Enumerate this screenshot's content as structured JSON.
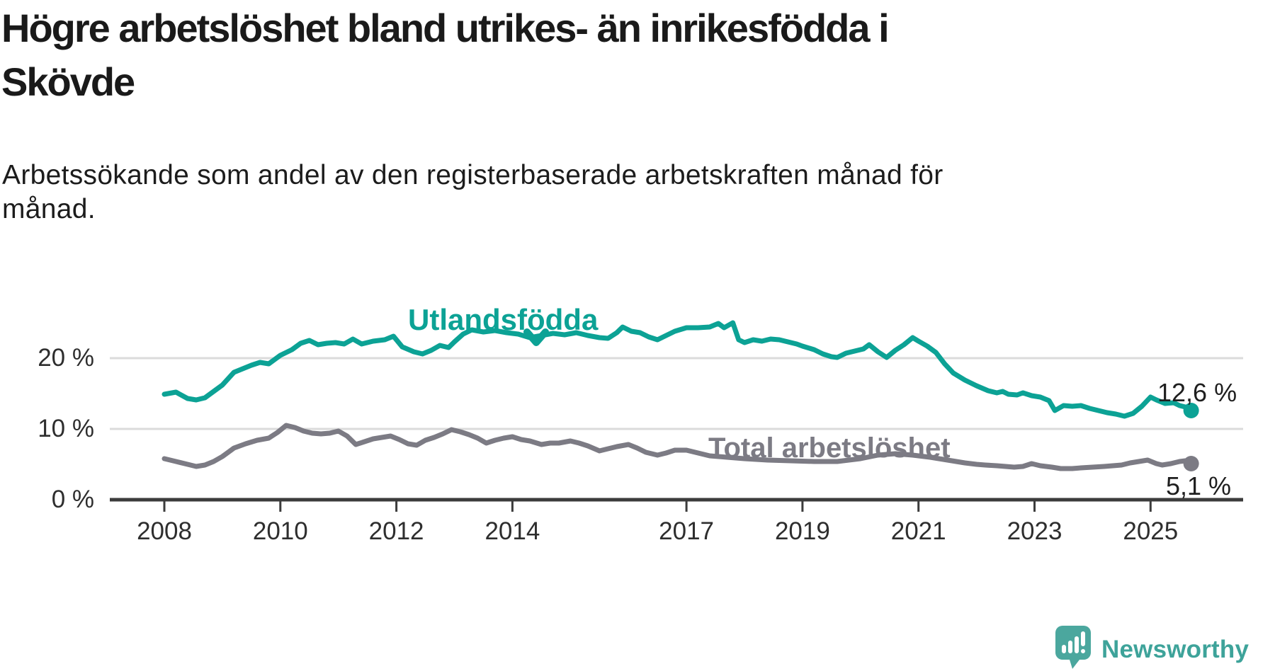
{
  "header": {
    "title_lines": [
      "Högre arbetslöshet bland utrikes- än inrikesfödda i",
      "Skövde"
    ],
    "subtitle_lines": [
      "Arbetssökande som andel av den registerbaserade arbetskraften månad för",
      "månad."
    ]
  },
  "chart_data": {
    "type": "line",
    "unit": "%",
    "grid": "horizontal-only",
    "x_axis": {
      "ticks": [
        "2008",
        "2010",
        "2012",
        "2014",
        "2017",
        "2019",
        "2021",
        "2023",
        "2025"
      ],
      "tick_years": [
        2008,
        2010,
        2012,
        2014,
        2017,
        2019,
        2021,
        2023,
        2025
      ],
      "range_years": [
        2008.0,
        2025.75
      ]
    },
    "y_axis": {
      "ticks": [
        {
          "value": 0,
          "label": "0 %"
        },
        {
          "value": 10,
          "label": "10 %"
        },
        {
          "value": 20,
          "label": "20 %"
        }
      ],
      "ylim": [
        0,
        28
      ]
    },
    "series": [
      {
        "name": "Utlandsfödda",
        "color": "#0ca295",
        "end_label": "12,6 %",
        "end_value": 12.6,
        "points": [
          [
            2008.0,
            14.9
          ],
          [
            2008.2,
            15.2
          ],
          [
            2008.4,
            14.3
          ],
          [
            2008.55,
            14.1
          ],
          [
            2008.7,
            14.4
          ],
          [
            2008.85,
            15.3
          ],
          [
            2009.0,
            16.2
          ],
          [
            2009.2,
            18.0
          ],
          [
            2009.35,
            18.5
          ],
          [
            2009.5,
            19.0
          ],
          [
            2009.65,
            19.4
          ],
          [
            2009.8,
            19.2
          ],
          [
            2010.0,
            20.4
          ],
          [
            2010.2,
            21.2
          ],
          [
            2010.35,
            22.1
          ],
          [
            2010.5,
            22.5
          ],
          [
            2010.65,
            21.9
          ],
          [
            2010.8,
            22.1
          ],
          [
            2010.95,
            22.2
          ],
          [
            2011.1,
            22.0
          ],
          [
            2011.25,
            22.7
          ],
          [
            2011.4,
            22.0
          ],
          [
            2011.6,
            22.4
          ],
          [
            2011.8,
            22.6
          ],
          [
            2011.95,
            23.1
          ],
          [
            2012.1,
            21.6
          ],
          [
            2012.3,
            20.9
          ],
          [
            2012.45,
            20.6
          ],
          [
            2012.6,
            21.1
          ],
          [
            2012.75,
            21.8
          ],
          [
            2012.9,
            21.5
          ],
          [
            2013.0,
            22.3
          ],
          [
            2013.15,
            23.4
          ],
          [
            2013.3,
            24.0
          ],
          [
            2013.5,
            23.7
          ],
          [
            2013.7,
            23.9
          ],
          [
            2013.9,
            23.6
          ],
          [
            2014.1,
            23.4
          ],
          [
            2014.3,
            22.9
          ],
          [
            2014.5,
            23.2
          ],
          [
            2014.7,
            23.5
          ],
          [
            2014.9,
            23.3
          ],
          [
            2015.1,
            23.6
          ],
          [
            2015.3,
            23.2
          ],
          [
            2015.5,
            22.9
          ],
          [
            2015.65,
            22.8
          ],
          [
            2015.8,
            23.6
          ],
          [
            2015.9,
            24.4
          ],
          [
            2016.05,
            23.8
          ],
          [
            2016.2,
            23.6
          ],
          [
            2016.35,
            23.0
          ],
          [
            2016.5,
            22.6
          ],
          [
            2016.65,
            23.2
          ],
          [
            2016.8,
            23.8
          ],
          [
            2017.0,
            24.3
          ],
          [
            2017.2,
            24.3
          ],
          [
            2017.4,
            24.4
          ],
          [
            2017.55,
            24.9
          ],
          [
            2017.65,
            24.3
          ],
          [
            2017.8,
            25.0
          ],
          [
            2017.9,
            22.6
          ],
          [
            2018.0,
            22.2
          ],
          [
            2018.15,
            22.6
          ],
          [
            2018.3,
            22.4
          ],
          [
            2018.45,
            22.7
          ],
          [
            2018.6,
            22.6
          ],
          [
            2018.75,
            22.3
          ],
          [
            2018.9,
            22.0
          ],
          [
            2019.0,
            21.7
          ],
          [
            2019.2,
            21.2
          ],
          [
            2019.35,
            20.6
          ],
          [
            2019.5,
            20.2
          ],
          [
            2019.6,
            20.1
          ],
          [
            2019.75,
            20.7
          ],
          [
            2019.9,
            21.0
          ],
          [
            2020.05,
            21.3
          ],
          [
            2020.15,
            21.9
          ],
          [
            2020.3,
            20.9
          ],
          [
            2020.45,
            20.1
          ],
          [
            2020.6,
            21.1
          ],
          [
            2020.75,
            21.9
          ],
          [
            2020.9,
            22.9
          ],
          [
            2021.0,
            22.4
          ],
          [
            2021.15,
            21.7
          ],
          [
            2021.3,
            20.8
          ],
          [
            2021.45,
            19.2
          ],
          [
            2021.6,
            17.9
          ],
          [
            2021.8,
            16.9
          ],
          [
            2022.0,
            16.1
          ],
          [
            2022.2,
            15.4
          ],
          [
            2022.35,
            15.1
          ],
          [
            2022.45,
            15.3
          ],
          [
            2022.55,
            14.9
          ],
          [
            2022.7,
            14.8
          ],
          [
            2022.8,
            15.1
          ],
          [
            2022.95,
            14.7
          ],
          [
            2023.1,
            14.5
          ],
          [
            2023.25,
            14.0
          ],
          [
            2023.35,
            12.6
          ],
          [
            2023.5,
            13.3
          ],
          [
            2023.65,
            13.2
          ],
          [
            2023.8,
            13.3
          ],
          [
            2023.95,
            12.9
          ],
          [
            2024.1,
            12.6
          ],
          [
            2024.25,
            12.3
          ],
          [
            2024.4,
            12.1
          ],
          [
            2024.55,
            11.8
          ],
          [
            2024.7,
            12.2
          ],
          [
            2024.85,
            13.2
          ],
          [
            2025.0,
            14.5
          ],
          [
            2025.1,
            14.1
          ],
          [
            2025.25,
            13.6
          ],
          [
            2025.4,
            13.7
          ],
          [
            2025.5,
            13.3
          ],
          [
            2025.6,
            13.1
          ],
          [
            2025.7,
            12.6
          ]
        ]
      },
      {
        "name": "Total arbetslöshet",
        "color": "#7c7b84",
        "end_label": "5,1 %",
        "end_value": 5.1,
        "points": [
          [
            2008.0,
            5.8
          ],
          [
            2008.2,
            5.4
          ],
          [
            2008.4,
            5.0
          ],
          [
            2008.55,
            4.7
          ],
          [
            2008.7,
            4.9
          ],
          [
            2008.85,
            5.4
          ],
          [
            2009.0,
            6.1
          ],
          [
            2009.2,
            7.3
          ],
          [
            2009.4,
            7.9
          ],
          [
            2009.6,
            8.4
          ],
          [
            2009.8,
            8.7
          ],
          [
            2009.95,
            9.5
          ],
          [
            2010.1,
            10.5
          ],
          [
            2010.25,
            10.2
          ],
          [
            2010.4,
            9.7
          ],
          [
            2010.55,
            9.4
          ],
          [
            2010.7,
            9.3
          ],
          [
            2010.85,
            9.4
          ],
          [
            2011.0,
            9.7
          ],
          [
            2011.15,
            9.0
          ],
          [
            2011.3,
            7.8
          ],
          [
            2011.45,
            8.2
          ],
          [
            2011.6,
            8.6
          ],
          [
            2011.75,
            8.8
          ],
          [
            2011.9,
            9.0
          ],
          [
            2012.05,
            8.5
          ],
          [
            2012.2,
            7.9
          ],
          [
            2012.35,
            7.7
          ],
          [
            2012.5,
            8.4
          ],
          [
            2012.65,
            8.8
          ],
          [
            2012.8,
            9.3
          ],
          [
            2012.95,
            9.9
          ],
          [
            2013.1,
            9.6
          ],
          [
            2013.25,
            9.2
          ],
          [
            2013.4,
            8.7
          ],
          [
            2013.55,
            8.0
          ],
          [
            2013.7,
            8.4
          ],
          [
            2013.85,
            8.7
          ],
          [
            2014.0,
            8.9
          ],
          [
            2014.15,
            8.5
          ],
          [
            2014.3,
            8.3
          ],
          [
            2014.5,
            7.8
          ],
          [
            2014.65,
            8.0
          ],
          [
            2014.8,
            8.0
          ],
          [
            2015.0,
            8.3
          ],
          [
            2015.15,
            8.0
          ],
          [
            2015.3,
            7.6
          ],
          [
            2015.5,
            6.9
          ],
          [
            2015.65,
            7.2
          ],
          [
            2015.8,
            7.5
          ],
          [
            2016.0,
            7.8
          ],
          [
            2016.15,
            7.3
          ],
          [
            2016.3,
            6.7
          ],
          [
            2016.5,
            6.3
          ],
          [
            2016.65,
            6.6
          ],
          [
            2016.8,
            7.0
          ],
          [
            2017.0,
            7.0
          ],
          [
            2017.2,
            6.6
          ],
          [
            2017.4,
            6.2
          ],
          [
            2017.7,
            6.0
          ],
          [
            2018.0,
            5.8
          ],
          [
            2018.4,
            5.6
          ],
          [
            2018.8,
            5.5
          ],
          [
            2019.2,
            5.4
          ],
          [
            2019.6,
            5.4
          ],
          [
            2020.0,
            5.8
          ],
          [
            2020.3,
            6.3
          ],
          [
            2020.6,
            6.5
          ],
          [
            2020.9,
            6.3
          ],
          [
            2021.2,
            6.0
          ],
          [
            2021.5,
            5.6
          ],
          [
            2021.8,
            5.2
          ],
          [
            2022.0,
            5.0
          ],
          [
            2022.15,
            4.9
          ],
          [
            2022.35,
            4.8
          ],
          [
            2022.5,
            4.7
          ],
          [
            2022.65,
            4.6
          ],
          [
            2022.8,
            4.7
          ],
          [
            2022.95,
            5.1
          ],
          [
            2023.1,
            4.8
          ],
          [
            2023.3,
            4.6
          ],
          [
            2023.45,
            4.4
          ],
          [
            2023.65,
            4.4
          ],
          [
            2023.8,
            4.5
          ],
          [
            2024.0,
            4.6
          ],
          [
            2024.2,
            4.7
          ],
          [
            2024.35,
            4.8
          ],
          [
            2024.5,
            4.9
          ],
          [
            2024.65,
            5.2
          ],
          [
            2024.8,
            5.4
          ],
          [
            2024.95,
            5.6
          ],
          [
            2025.1,
            5.1
          ],
          [
            2025.2,
            4.9
          ],
          [
            2025.35,
            5.1
          ],
          [
            2025.5,
            5.4
          ],
          [
            2025.6,
            5.5
          ],
          [
            2025.7,
            5.1
          ]
        ]
      }
    ],
    "annotation_arrow": {
      "series": "Utlandsfödda",
      "direction": "down"
    }
  },
  "footer": {
    "brand": "Newsworthy"
  },
  "colors": {
    "accent_teal": "#0ca295",
    "series_gray": "#7c7b84",
    "axis_line": "#3c3c3c",
    "gridline": "#dbdbdb",
    "text_dark": "#1a1a1a",
    "logo_teal": "#4ba79e",
    "logo_text_teal": "#3ea39a"
  }
}
